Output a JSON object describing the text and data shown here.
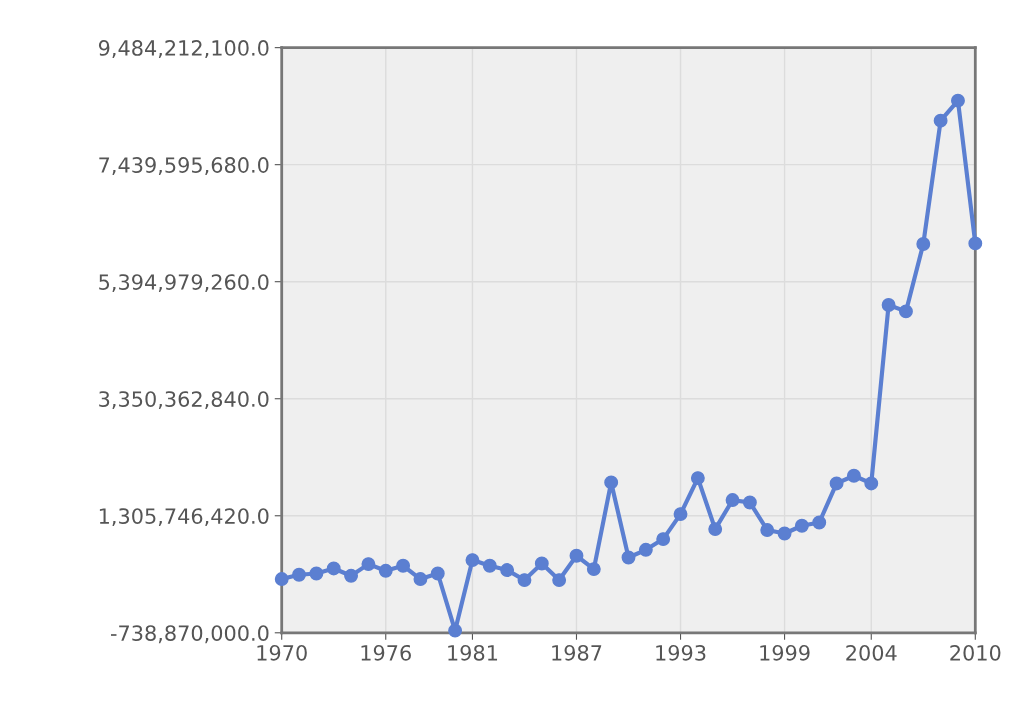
{
  "chart_data": {
    "type": "line",
    "x": [
      1970,
      1971,
      1972,
      1973,
      1974,
      1975,
      1976,
      1977,
      1978,
      1979,
      1980,
      1981,
      1982,
      1983,
      1984,
      1985,
      1986,
      1987,
      1988,
      1989,
      1990,
      1991,
      1992,
      1993,
      1994,
      1995,
      1996,
      1997,
      1998,
      1999,
      2000,
      2001,
      2002,
      2003,
      2004,
      2005,
      2006,
      2007,
      2008,
      2009,
      2010
    ],
    "series": [
      {
        "color": "#5b7fd1",
        "values": [
          200000000,
          275000000,
          297000000,
          385000000,
          257000000,
          461000000,
          344000000,
          432000000,
          200000000,
          297000000,
          -700000000,
          531000000,
          432000000,
          357000000,
          182000000,
          472000000,
          182000000,
          607000000,
          374000000,
          1888000000,
          577000000,
          711000000,
          898000000,
          1335000000,
          1964000000,
          1073000000,
          1580000000,
          1538000000,
          1056000000,
          996000000,
          1131000000,
          1188000000,
          1870000000,
          2005000000,
          1870000000,
          4988000000,
          4876000000,
          6053000000,
          8208000000,
          8558000000,
          6064000000
        ]
      }
    ],
    "xlim": [
      1970,
      2010
    ],
    "xticks": [
      1970,
      1976,
      1981,
      1987,
      1993,
      1999,
      2004,
      2010
    ],
    "ylim": [
      -738870000,
      9484212100
    ],
    "yticks": [
      {
        "value": -738870000,
        "label": "-738,870,000.0"
      },
      {
        "value": 1305746420,
        "label": "1,305,746,420.0"
      },
      {
        "value": 3350362840,
        "label": "3,350,362,840.0"
      },
      {
        "value": 5394979260,
        "label": "5,394,979,260.0"
      },
      {
        "value": 7439595680,
        "label": "7,439,595,680.0"
      },
      {
        "value": 9484212100,
        "label": "9,484,212,100.0"
      }
    ],
    "grid": true,
    "marker": "circle",
    "line_style": "solid",
    "legend": false
  }
}
